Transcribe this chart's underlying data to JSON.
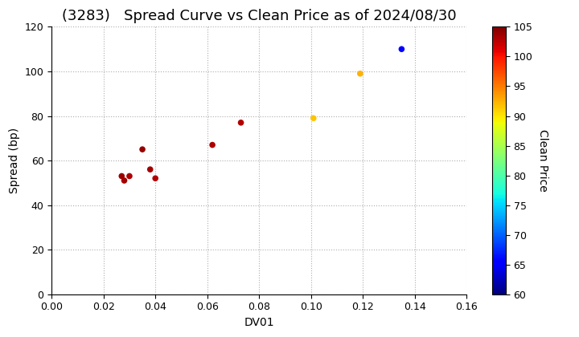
{
  "title": "(3283)   Spread Curve vs Clean Price as of 2024/08/30",
  "xlabel": "DV01",
  "ylabel": "Spread (bp)",
  "xlim": [
    0.0,
    0.16
  ],
  "ylim": [
    0,
    120
  ],
  "xticks": [
    0.0,
    0.02,
    0.04,
    0.06,
    0.08,
    0.1,
    0.12,
    0.14,
    0.16
  ],
  "yticks": [
    0,
    20,
    40,
    60,
    80,
    100,
    120
  ],
  "colorbar_label": "Clean Price",
  "colorbar_vmin": 60,
  "colorbar_vmax": 105,
  "colorbar_ticks": [
    60,
    65,
    70,
    75,
    80,
    85,
    90,
    95,
    100,
    105
  ],
  "points": [
    {
      "dv01": 0.027,
      "spread": 53,
      "price": 103.8
    },
    {
      "dv01": 0.028,
      "spread": 51,
      "price": 103.5
    },
    {
      "dv01": 0.03,
      "spread": 53,
      "price": 103.2
    },
    {
      "dv01": 0.035,
      "spread": 65,
      "price": 104.0
    },
    {
      "dv01": 0.038,
      "spread": 56,
      "price": 103.5
    },
    {
      "dv01": 0.04,
      "spread": 52,
      "price": 103.0
    },
    {
      "dv01": 0.062,
      "spread": 67,
      "price": 103.2
    },
    {
      "dv01": 0.073,
      "spread": 77,
      "price": 103.0
    },
    {
      "dv01": 0.101,
      "spread": 79,
      "price": 91.5
    },
    {
      "dv01": 0.119,
      "spread": 99,
      "price": 92.5
    },
    {
      "dv01": 0.135,
      "spread": 110,
      "price": 65.0
    }
  ],
  "background_color": "#ffffff",
  "grid_color": "#999999",
  "title_fontsize": 13,
  "axis_fontsize": 10,
  "marker_size": 30,
  "figsize": [
    7.2,
    4.2
  ],
  "dpi": 100
}
